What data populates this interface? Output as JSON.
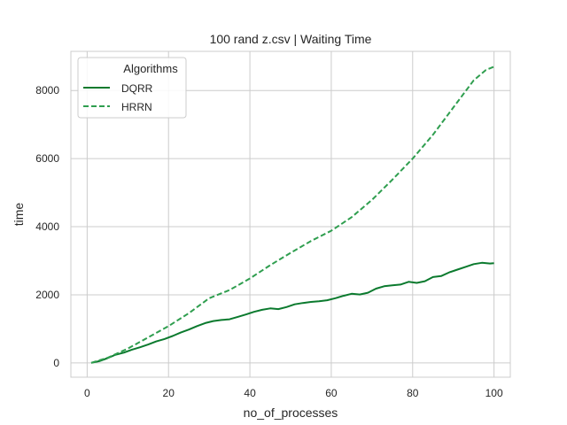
{
  "chart_data": {
    "type": "line",
    "title": "100 rand z.csv | Waiting Time",
    "xlabel": "no_of_processes",
    "ylabel": "time",
    "xlim": [
      -4,
      104
    ],
    "ylim": [
      -420,
      9150
    ],
    "xticks": [
      0,
      20,
      40,
      60,
      80,
      100
    ],
    "yticks": [
      0,
      2000,
      4000,
      6000,
      8000
    ],
    "grid": true,
    "legend": {
      "title": "Algorithms",
      "position": "top-left"
    },
    "series": [
      {
        "name": "DQRR",
        "style": "solid",
        "color": "#0b7a2e",
        "x": [
          1,
          3,
          5,
          7,
          9,
          11,
          13,
          15,
          17,
          19,
          21,
          23,
          25,
          27,
          29,
          31,
          33,
          35,
          37,
          39,
          41,
          43,
          45,
          47,
          49,
          51,
          53,
          55,
          57,
          59,
          61,
          63,
          65,
          67,
          69,
          71,
          73,
          75,
          77,
          79,
          81,
          83,
          85,
          87,
          89,
          91,
          93,
          95,
          97,
          99,
          100
        ],
        "y": [
          0,
          50,
          140,
          240,
          300,
          390,
          460,
          540,
          630,
          700,
          790,
          890,
          980,
          1080,
          1170,
          1230,
          1260,
          1280,
          1350,
          1420,
          1500,
          1560,
          1600,
          1580,
          1640,
          1720,
          1760,
          1790,
          1810,
          1840,
          1900,
          1970,
          2030,
          2010,
          2060,
          2180,
          2250,
          2280,
          2300,
          2380,
          2350,
          2400,
          2520,
          2550,
          2660,
          2740,
          2820,
          2900,
          2940,
          2920,
          2930
        ]
      },
      {
        "name": "HRRN",
        "style": "dashed",
        "color": "#2f9e4f",
        "x": [
          1,
          5,
          10,
          15,
          20,
          25,
          30,
          35,
          40,
          45,
          50,
          55,
          60,
          65,
          70,
          75,
          80,
          85,
          90,
          95,
          98,
          100
        ],
        "y": [
          0,
          150,
          420,
          750,
          1080,
          1460,
          1900,
          2140,
          2480,
          2870,
          3230,
          3580,
          3880,
          4280,
          4790,
          5380,
          6000,
          6700,
          7500,
          8300,
          8600,
          8700
        ]
      }
    ]
  }
}
